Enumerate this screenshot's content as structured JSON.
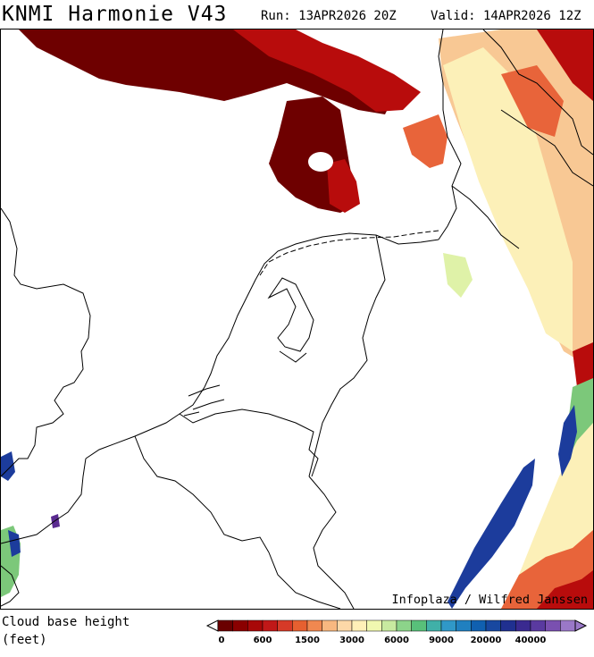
{
  "header": {
    "title": "KNMI Harmonie V43",
    "run": "Run: 13APR2026 20Z",
    "valid": "Valid: 14APR2026 12Z"
  },
  "credit": "Infoplaza / Wilfred Janssen",
  "legend": {
    "label_line1": "Cloud base height",
    "label_line2": "(feet)",
    "colors": [
      "#6a0000",
      "#8a0000",
      "#a80808",
      "#c01818",
      "#d63a28",
      "#e66030",
      "#f08850",
      "#f8b880",
      "#fcd8a8",
      "#fff0b8",
      "#f0f8b0",
      "#c8eaa0",
      "#8cd48a",
      "#58c07a",
      "#40b0a8",
      "#3098c8",
      "#2080c0",
      "#1060b0",
      "#1848a0",
      "#203090",
      "#3a2a90",
      "#5a3aa0",
      "#7a50b0",
      "#9a78c8"
    ],
    "tick_labels": [
      "0",
      "600",
      "1500",
      "3000",
      "6000",
      "9000",
      "20000",
      "40000"
    ]
  },
  "colors": {
    "cb_dark": "#6e0000",
    "cb_red": "#b80c0c",
    "cb_orange": "#e8643a",
    "cb_peach": "#f8c894",
    "cb_yellow": "#fcf0b8",
    "cb_lightgreen": "#dff2a8",
    "cb_green": "#7cc87a",
    "cb_blue": "#1c3c9c",
    "cb_purple": "#5a2a90",
    "coast": "#000000"
  }
}
